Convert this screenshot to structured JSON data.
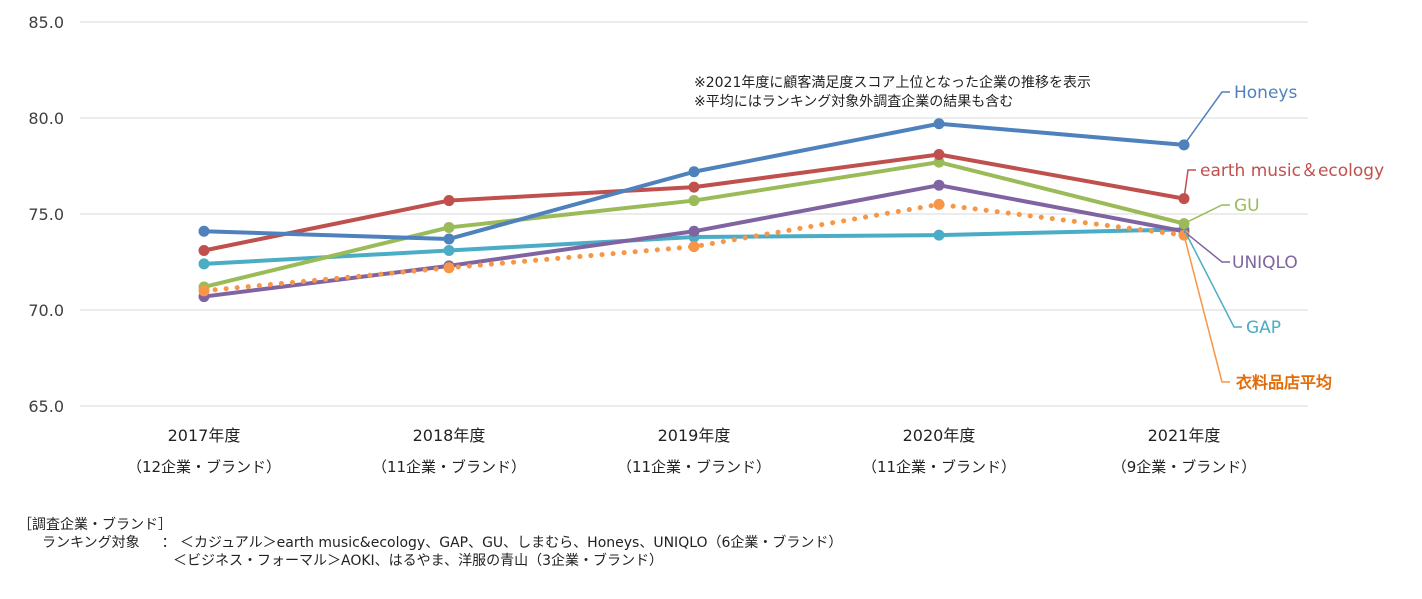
{
  "chart_data": {
    "type": "line",
    "categories": [
      "2017年度",
      "2018年度",
      "2019年度",
      "2020年度",
      "2021年度"
    ],
    "category_sublabels": [
      "（12企業・ブランド）",
      "（11企業・ブランド）",
      "（11企業・ブランド）",
      "（11企業・ブランド）",
      "（9企業・ブランド）"
    ],
    "ylim": [
      65.0,
      85.0
    ],
    "yticks": [
      "65.0",
      "70.0",
      "75.0",
      "80.0",
      "85.0"
    ],
    "grid": true,
    "notes": [
      "※2021年度に顧客満足度スコア上位となった企業の推移を表示",
      "※平均にはランキング対象外調査企業の結果も含む"
    ],
    "series": [
      {
        "name": "Honeys",
        "color": "#4f81bd",
        "style": "solid",
        "values": [
          74.1,
          73.7,
          77.2,
          79.7,
          78.6
        ]
      },
      {
        "name": "earth music＆ecology",
        "color": "#c0504d",
        "style": "solid",
        "values": [
          73.1,
          75.7,
          76.4,
          78.1,
          75.8
        ]
      },
      {
        "name": "GU",
        "color": "#9bbb59",
        "style": "solid",
        "values": [
          71.2,
          74.3,
          75.7,
          77.7,
          74.5
        ]
      },
      {
        "name": "UNIQLO",
        "color": "#8064a2",
        "style": "solid",
        "values": [
          70.7,
          72.3,
          74.1,
          76.5,
          74.1
        ]
      },
      {
        "name": "GAP",
        "color": "#4bacc6",
        "style": "solid",
        "values": [
          72.4,
          73.1,
          73.8,
          73.9,
          74.2
        ]
      },
      {
        "name": "衣料品店平均",
        "color": "#f79646",
        "style": "dotted",
        "values": [
          71.0,
          72.2,
          73.3,
          75.5,
          73.9
        ]
      }
    ]
  },
  "footnote": {
    "heading": "［調査企業・ブランド］",
    "target_label": "ランキング対象",
    "colon": "：",
    "line1": "＜カジュアル＞earth music&ecology、GAP、GU、しまむら、Honeys、UNIQLO（6企業・ブランド）",
    "line2": "＜ビジネス・フォーマル＞AOKI、はるやま、洋服の青山（3企業・ブランド）"
  }
}
